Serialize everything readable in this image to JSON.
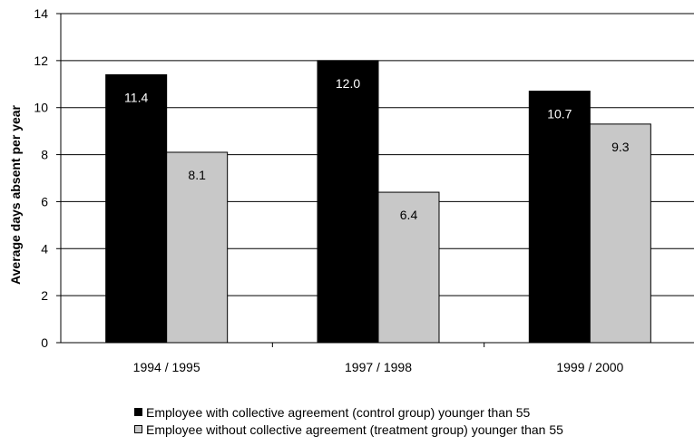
{
  "chart_data": {
    "type": "bar",
    "title": "",
    "xlabel": "",
    "ylabel": "Average days absent per year",
    "ylim": [
      0,
      14
    ],
    "yticks": [
      "0",
      "2",
      "4",
      "6",
      "8",
      "10",
      "12",
      "14"
    ],
    "categories": [
      "1994 / 1995",
      "1997 / 1998",
      "1999 / 2000"
    ],
    "series": [
      {
        "name": "Employee with collective agreement (control group) younger than 55",
        "values": [
          11.4,
          12.0,
          10.7
        ],
        "labels": [
          "11.4",
          "12.0",
          "10.7"
        ],
        "color": "#000000",
        "label_color": "#ffffff"
      },
      {
        "name": "Employee without collective agreement (treatment group) younger than 55",
        "values": [
          8.1,
          6.4,
          9.3
        ],
        "labels": [
          "8.1",
          "6.4",
          "9.3"
        ],
        "color": "#c8c8c8",
        "label_color": "#000000"
      }
    ],
    "grid": true,
    "legend_position": "bottom"
  }
}
